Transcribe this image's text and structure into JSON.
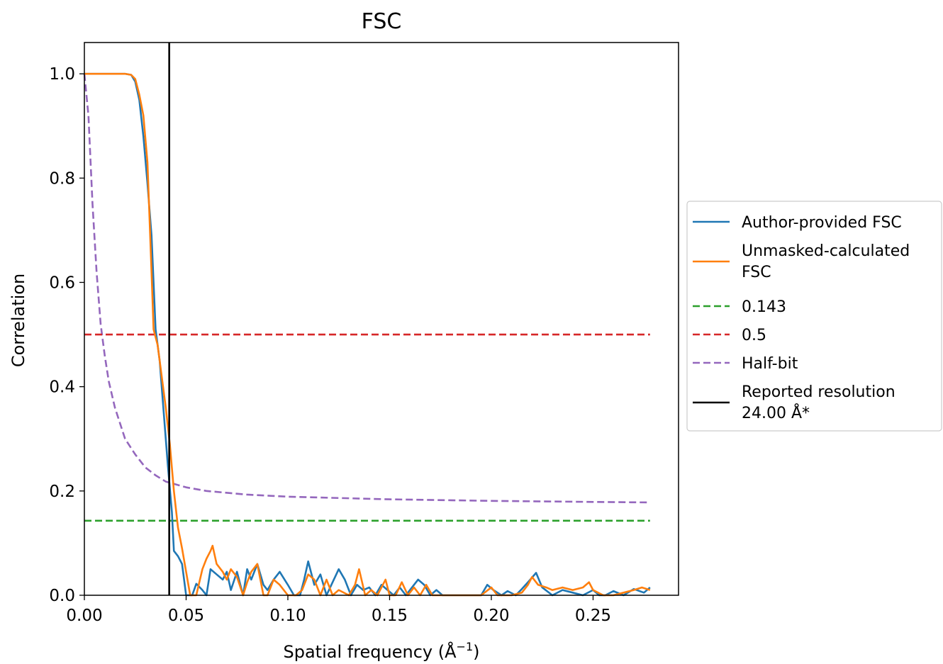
{
  "chart_data": {
    "type": "line",
    "title": "FSC",
    "xlabel": "Spatial frequency (Å",
    "xlabel_sup": "−1",
    "xlabel_end": ")",
    "ylabel": "Correlation",
    "xlim": [
      0.0,
      0.292
    ],
    "ylim": [
      0.0,
      1.06
    ],
    "xticks": [
      0.0,
      0.05,
      0.1,
      0.15,
      0.2,
      0.25
    ],
    "xtick_labels": [
      "0.00",
      "0.05",
      "0.10",
      "0.15",
      "0.20",
      "0.25"
    ],
    "yticks": [
      0.0,
      0.2,
      0.4,
      0.6,
      0.8,
      1.0
    ],
    "ytick_labels": [
      "0.0",
      "0.2",
      "0.4",
      "0.6",
      "0.8",
      "1.0"
    ],
    "grid": false,
    "legend_placement": "outside-right",
    "series": [
      {
        "name": "Author-provided FSC",
        "color": "#1f77b4",
        "style": "solid",
        "points": [
          [
            0.0,
            1.0
          ],
          [
            0.005,
            1.0
          ],
          [
            0.01,
            1.0
          ],
          [
            0.015,
            1.0
          ],
          [
            0.02,
            1.0
          ],
          [
            0.023,
            0.998
          ],
          [
            0.025,
            0.985
          ],
          [
            0.027,
            0.95
          ],
          [
            0.029,
            0.88
          ],
          [
            0.031,
            0.79
          ],
          [
            0.033,
            0.69
          ],
          [
            0.035,
            0.51
          ],
          [
            0.037,
            0.45
          ],
          [
            0.039,
            0.35
          ],
          [
            0.041,
            0.25
          ],
          [
            0.043,
            0.16
          ],
          [
            0.044,
            0.085
          ],
          [
            0.046,
            0.075
          ],
          [
            0.048,
            0.06
          ],
          [
            0.05,
            0.0
          ],
          [
            0.053,
            0.0
          ],
          [
            0.055,
            0.022
          ],
          [
            0.058,
            0.01
          ],
          [
            0.06,
            0.0
          ],
          [
            0.062,
            0.05
          ],
          [
            0.065,
            0.04
          ],
          [
            0.068,
            0.03
          ],
          [
            0.07,
            0.045
          ],
          [
            0.072,
            0.01
          ],
          [
            0.075,
            0.045
          ],
          [
            0.078,
            0.0
          ],
          [
            0.08,
            0.05
          ],
          [
            0.082,
            0.03
          ],
          [
            0.085,
            0.06
          ],
          [
            0.088,
            0.02
          ],
          [
            0.09,
            0.01
          ],
          [
            0.093,
            0.03
          ],
          [
            0.096,
            0.045
          ],
          [
            0.1,
            0.02
          ],
          [
            0.103,
            0.0
          ],
          [
            0.106,
            0.0
          ],
          [
            0.108,
            0.03
          ],
          [
            0.11,
            0.065
          ],
          [
            0.113,
            0.02
          ],
          [
            0.116,
            0.04
          ],
          [
            0.119,
            0.0
          ],
          [
            0.122,
            0.025
          ],
          [
            0.125,
            0.05
          ],
          [
            0.128,
            0.03
          ],
          [
            0.131,
            0.0
          ],
          [
            0.134,
            0.02
          ],
          [
            0.137,
            0.01
          ],
          [
            0.14,
            0.015
          ],
          [
            0.143,
            0.0
          ],
          [
            0.146,
            0.02
          ],
          [
            0.149,
            0.01
          ],
          [
            0.152,
            0.0
          ],
          [
            0.155,
            0.015
          ],
          [
            0.158,
            0.0
          ],
          [
            0.161,
            0.015
          ],
          [
            0.164,
            0.03
          ],
          [
            0.167,
            0.02
          ],
          [
            0.17,
            0.0
          ],
          [
            0.173,
            0.01
          ],
          [
            0.176,
            0.0
          ],
          [
            0.18,
            0.0
          ],
          [
            0.185,
            0.0
          ],
          [
            0.19,
            0.0
          ],
          [
            0.195,
            0.0
          ],
          [
            0.198,
            0.02
          ],
          [
            0.201,
            0.01
          ],
          [
            0.205,
            0.0
          ],
          [
            0.208,
            0.008
          ],
          [
            0.212,
            0.0
          ],
          [
            0.215,
            0.012
          ],
          [
            0.218,
            0.025
          ],
          [
            0.222,
            0.043
          ],
          [
            0.225,
            0.015
          ],
          [
            0.23,
            0.0
          ],
          [
            0.235,
            0.01
          ],
          [
            0.24,
            0.005
          ],
          [
            0.245,
            0.0
          ],
          [
            0.25,
            0.01
          ],
          [
            0.253,
            0.0
          ],
          [
            0.256,
            0.0
          ],
          [
            0.26,
            0.008
          ],
          [
            0.265,
            0.0
          ],
          [
            0.27,
            0.012
          ],
          [
            0.275,
            0.005
          ],
          [
            0.278,
            0.015
          ]
        ]
      },
      {
        "name": "Unmasked-calculated\n FSC",
        "color": "#ff7f0e",
        "style": "solid",
        "points": [
          [
            0.0,
            1.0
          ],
          [
            0.005,
            1.0
          ],
          [
            0.01,
            1.0
          ],
          [
            0.015,
            1.0
          ],
          [
            0.02,
            1.0
          ],
          [
            0.023,
            0.998
          ],
          [
            0.025,
            0.99
          ],
          [
            0.027,
            0.96
          ],
          [
            0.029,
            0.92
          ],
          [
            0.031,
            0.83
          ],
          [
            0.033,
            0.62
          ],
          [
            0.034,
            0.51
          ],
          [
            0.036,
            0.48
          ],
          [
            0.038,
            0.42
          ],
          [
            0.04,
            0.36
          ],
          [
            0.042,
            0.29
          ],
          [
            0.044,
            0.2
          ],
          [
            0.046,
            0.13
          ],
          [
            0.048,
            0.09
          ],
          [
            0.05,
            0.045
          ],
          [
            0.052,
            0.0
          ],
          [
            0.055,
            0.0
          ],
          [
            0.058,
            0.05
          ],
          [
            0.06,
            0.07
          ],
          [
            0.062,
            0.085
          ],
          [
            0.063,
            0.095
          ],
          [
            0.065,
            0.06
          ],
          [
            0.068,
            0.045
          ],
          [
            0.07,
            0.03
          ],
          [
            0.072,
            0.05
          ],
          [
            0.075,
            0.035
          ],
          [
            0.078,
            0.0
          ],
          [
            0.08,
            0.025
          ],
          [
            0.082,
            0.045
          ],
          [
            0.085,
            0.06
          ],
          [
            0.088,
            0.0
          ],
          [
            0.09,
            0.0
          ],
          [
            0.093,
            0.03
          ],
          [
            0.096,
            0.02
          ],
          [
            0.1,
            0.0
          ],
          [
            0.104,
            0.0
          ],
          [
            0.107,
            0.01
          ],
          [
            0.11,
            0.04
          ],
          [
            0.113,
            0.03
          ],
          [
            0.116,
            0.0
          ],
          [
            0.119,
            0.03
          ],
          [
            0.122,
            0.0
          ],
          [
            0.125,
            0.01
          ],
          [
            0.13,
            0.0
          ],
          [
            0.133,
            0.02
          ],
          [
            0.135,
            0.05
          ],
          [
            0.138,
            0.0
          ],
          [
            0.141,
            0.01
          ],
          [
            0.144,
            0.0
          ],
          [
            0.148,
            0.03
          ],
          [
            0.15,
            0.0
          ],
          [
            0.153,
            0.0
          ],
          [
            0.156,
            0.025
          ],
          [
            0.159,
            0.0
          ],
          [
            0.162,
            0.015
          ],
          [
            0.165,
            0.0
          ],
          [
            0.168,
            0.02
          ],
          [
            0.171,
            0.0
          ],
          [
            0.175,
            0.0
          ],
          [
            0.18,
            0.0
          ],
          [
            0.185,
            0.0
          ],
          [
            0.188,
            0.0
          ],
          [
            0.19,
            0.0
          ],
          [
            0.195,
            0.0
          ],
          [
            0.2,
            0.015
          ],
          [
            0.203,
            0.0
          ],
          [
            0.206,
            0.0
          ],
          [
            0.21,
            0.0
          ],
          [
            0.215,
            0.005
          ],
          [
            0.218,
            0.02
          ],
          [
            0.22,
            0.035
          ],
          [
            0.223,
            0.02
          ],
          [
            0.227,
            0.015
          ],
          [
            0.23,
            0.01
          ],
          [
            0.235,
            0.015
          ],
          [
            0.24,
            0.01
          ],
          [
            0.245,
            0.015
          ],
          [
            0.248,
            0.025
          ],
          [
            0.25,
            0.01
          ],
          [
            0.255,
            0.0
          ],
          [
            0.26,
            0.0
          ],
          [
            0.265,
            0.005
          ],
          [
            0.27,
            0.01
          ],
          [
            0.274,
            0.015
          ],
          [
            0.278,
            0.01
          ]
        ]
      },
      {
        "name": "0.143",
        "color": "#2ca02c",
        "style": "dashed",
        "points": [
          [
            0.0,
            0.143
          ],
          [
            0.278,
            0.143
          ]
        ]
      },
      {
        "name": "0.5",
        "color": "#d62728",
        "style": "dashed",
        "points": [
          [
            0.0,
            0.5
          ],
          [
            0.278,
            0.5
          ]
        ]
      },
      {
        "name": "Half-bit",
        "color": "#9467bd",
        "style": "dashed",
        "points": [
          [
            0.0,
            1.0
          ],
          [
            0.002,
            0.92
          ],
          [
            0.004,
            0.75
          ],
          [
            0.006,
            0.62
          ],
          [
            0.008,
            0.52
          ],
          [
            0.01,
            0.46
          ],
          [
            0.012,
            0.41
          ],
          [
            0.015,
            0.36
          ],
          [
            0.02,
            0.3
          ],
          [
            0.025,
            0.27
          ],
          [
            0.03,
            0.245
          ],
          [
            0.035,
            0.23
          ],
          [
            0.04,
            0.218
          ],
          [
            0.05,
            0.207
          ],
          [
            0.06,
            0.2
          ],
          [
            0.08,
            0.193
          ],
          [
            0.1,
            0.189
          ],
          [
            0.15,
            0.184
          ],
          [
            0.2,
            0.181
          ],
          [
            0.25,
            0.179
          ],
          [
            0.278,
            0.178
          ]
        ]
      },
      {
        "name": "Reported resolution\n 24.00 Å*",
        "color": "#000000",
        "style": "vline",
        "x": 0.0417
      }
    ]
  }
}
